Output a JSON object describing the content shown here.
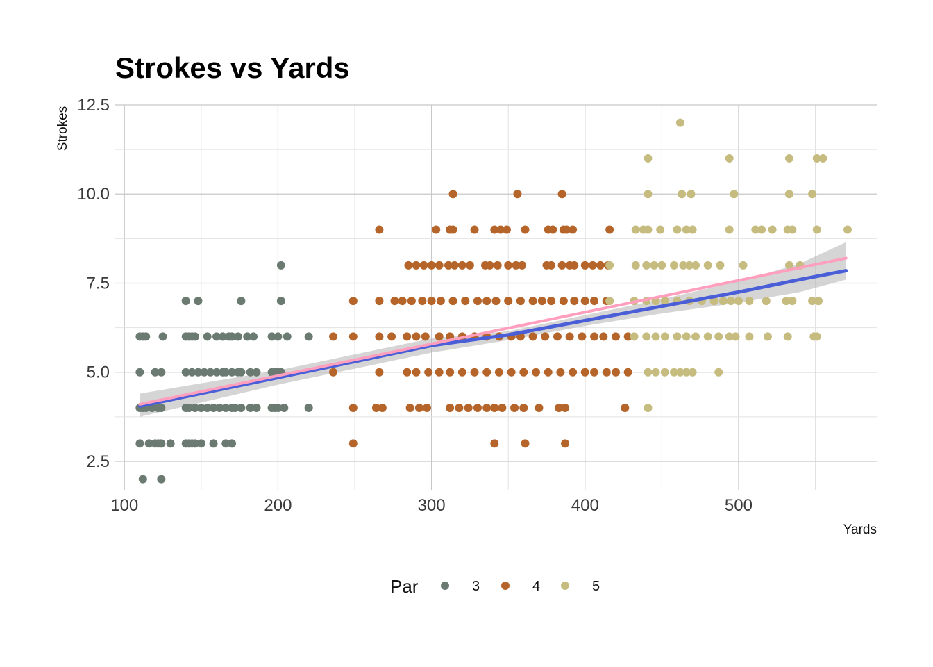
{
  "chart_data": {
    "type": "scatter",
    "title": "Strokes vs Yards",
    "xlabel": "Yards",
    "ylabel": "Strokes",
    "xlim": [
      94,
      590
    ],
    "ylim": [
      1.7,
      12.5
    ],
    "x_ticks": [
      100,
      200,
      300,
      400,
      500
    ],
    "x_tick_labels": [
      "100",
      "200",
      "300",
      "400",
      "500"
    ],
    "y_ticks": [
      2.5,
      5.0,
      7.5,
      10.0,
      12.5
    ],
    "y_tick_labels": [
      "2.5",
      "5.0",
      "7.5",
      "10.0",
      "12.5"
    ],
    "grid": true,
    "legend": {
      "title": "Par",
      "position": "bottom",
      "entries": [
        "3",
        "4",
        "5"
      ]
    },
    "colors": {
      "3": "#6b7b72",
      "4": "#b5652a",
      "5": "#c6bc80",
      "trend_linear": "#ff9fbd",
      "trend_smooth": "#4a5ed8",
      "confidence_band": "#b3b3b3"
    },
    "series": [
      {
        "name": "3",
        "points": [
          [
            110,
            6
          ],
          [
            112,
            6
          ],
          [
            114,
            6
          ],
          [
            110,
            5
          ],
          [
            120,
            5
          ],
          [
            124,
            5
          ],
          [
            110,
            4
          ],
          [
            112,
            4
          ],
          [
            114,
            4
          ],
          [
            118,
            4
          ],
          [
            122,
            4
          ],
          [
            124,
            4
          ],
          [
            110,
            3
          ],
          [
            116,
            3
          ],
          [
            120,
            3
          ],
          [
            122,
            3
          ],
          [
            124,
            3
          ],
          [
            112,
            2
          ],
          [
            124,
            2
          ],
          [
            140,
            7
          ],
          [
            148,
            7
          ],
          [
            176,
            7
          ],
          [
            202,
            7
          ],
          [
            202,
            8
          ],
          [
            125,
            6
          ],
          [
            140,
            6
          ],
          [
            142,
            6
          ],
          [
            144,
            6
          ],
          [
            146,
            6
          ],
          [
            154,
            6
          ],
          [
            160,
            6
          ],
          [
            164,
            6
          ],
          [
            168,
            6
          ],
          [
            170,
            6
          ],
          [
            174,
            6
          ],
          [
            180,
            6
          ],
          [
            184,
            6
          ],
          [
            196,
            6
          ],
          [
            200,
            6
          ],
          [
            206,
            6
          ],
          [
            220,
            6
          ],
          [
            140,
            5
          ],
          [
            144,
            5
          ],
          [
            148,
            5
          ],
          [
            152,
            5
          ],
          [
            156,
            5
          ],
          [
            160,
            5
          ],
          [
            164,
            5
          ],
          [
            166,
            5
          ],
          [
            170,
            5
          ],
          [
            174,
            5
          ],
          [
            176,
            5
          ],
          [
            182,
            5
          ],
          [
            186,
            5
          ],
          [
            196,
            5
          ],
          [
            198,
            5
          ],
          [
            200,
            5
          ],
          [
            202,
            5
          ],
          [
            140,
            4
          ],
          [
            142,
            4
          ],
          [
            146,
            4
          ],
          [
            150,
            4
          ],
          [
            154,
            4
          ],
          [
            158,
            4
          ],
          [
            162,
            4
          ],
          [
            166,
            4
          ],
          [
            170,
            4
          ],
          [
            172,
            4
          ],
          [
            176,
            4
          ],
          [
            182,
            4
          ],
          [
            186,
            4
          ],
          [
            196,
            4
          ],
          [
            198,
            4
          ],
          [
            200,
            4
          ],
          [
            204,
            4
          ],
          [
            220,
            4
          ],
          [
            130,
            3
          ],
          [
            140,
            3
          ],
          [
            142,
            3
          ],
          [
            144,
            3
          ],
          [
            146,
            3
          ],
          [
            150,
            3
          ],
          [
            158,
            3
          ],
          [
            166,
            3
          ],
          [
            170,
            3
          ]
        ]
      },
      {
        "name": "4",
        "points": [
          [
            314,
            10
          ],
          [
            356,
            10
          ],
          [
            385,
            10
          ],
          [
            266,
            9
          ],
          [
            303,
            9
          ],
          [
            312,
            9
          ],
          [
            314,
            9
          ],
          [
            328,
            9
          ],
          [
            341,
            9
          ],
          [
            345,
            9
          ],
          [
            349,
            9
          ],
          [
            361,
            9
          ],
          [
            376,
            9
          ],
          [
            379,
            9
          ],
          [
            386,
            9
          ],
          [
            388,
            9
          ],
          [
            392,
            9
          ],
          [
            416,
            9
          ],
          [
            285,
            8
          ],
          [
            290,
            8
          ],
          [
            295,
            8
          ],
          [
            300,
            8
          ],
          [
            305,
            8
          ],
          [
            311,
            8
          ],
          [
            315,
            8
          ],
          [
            320,
            8
          ],
          [
            325,
            8
          ],
          [
            335,
            8
          ],
          [
            338,
            8
          ],
          [
            343,
            8
          ],
          [
            350,
            8
          ],
          [
            355,
            8
          ],
          [
            359,
            8
          ],
          [
            375,
            8
          ],
          [
            378,
            8
          ],
          [
            385,
            8
          ],
          [
            390,
            8
          ],
          [
            393,
            8
          ],
          [
            400,
            8
          ],
          [
            405,
            8
          ],
          [
            410,
            8
          ],
          [
            415,
            8
          ],
          [
            249,
            7
          ],
          [
            266,
            7
          ],
          [
            276,
            7
          ],
          [
            281,
            7
          ],
          [
            287,
            7
          ],
          [
            294,
            7
          ],
          [
            300,
            7
          ],
          [
            306,
            7
          ],
          [
            314,
            7
          ],
          [
            322,
            7
          ],
          [
            330,
            7
          ],
          [
            336,
            7
          ],
          [
            342,
            7
          ],
          [
            350,
            7
          ],
          [
            358,
            7
          ],
          [
            366,
            7
          ],
          [
            372,
            7
          ],
          [
            378,
            7
          ],
          [
            386,
            7
          ],
          [
            393,
            7
          ],
          [
            400,
            7
          ],
          [
            406,
            7
          ],
          [
            414,
            7
          ],
          [
            236,
            6
          ],
          [
            249,
            6
          ],
          [
            266,
            6
          ],
          [
            274,
            6
          ],
          [
            284,
            6
          ],
          [
            290,
            6
          ],
          [
            296,
            6
          ],
          [
            305,
            6
          ],
          [
            312,
            6
          ],
          [
            320,
            6
          ],
          [
            328,
            6
          ],
          [
            336,
            6
          ],
          [
            344,
            6
          ],
          [
            352,
            6
          ],
          [
            358,
            6
          ],
          [
            366,
            6
          ],
          [
            374,
            6
          ],
          [
            382,
            6
          ],
          [
            390,
            6
          ],
          [
            398,
            6
          ],
          [
            406,
            6
          ],
          [
            412,
            6
          ],
          [
            420,
            6
          ],
          [
            428,
            6
          ],
          [
            236,
            5
          ],
          [
            266,
            5
          ],
          [
            284,
            5
          ],
          [
            290,
            5
          ],
          [
            298,
            5
          ],
          [
            305,
            5
          ],
          [
            312,
            5
          ],
          [
            320,
            5
          ],
          [
            328,
            5
          ],
          [
            336,
            5
          ],
          [
            344,
            5
          ],
          [
            352,
            5
          ],
          [
            360,
            5
          ],
          [
            368,
            5
          ],
          [
            376,
            5
          ],
          [
            384,
            5
          ],
          [
            392,
            5
          ],
          [
            400,
            5
          ],
          [
            406,
            5
          ],
          [
            414,
            5
          ],
          [
            420,
            5
          ],
          [
            428,
            5
          ],
          [
            249,
            4
          ],
          [
            264,
            4
          ],
          [
            268,
            4
          ],
          [
            286,
            4
          ],
          [
            292,
            4
          ],
          [
            297,
            4
          ],
          [
            312,
            4
          ],
          [
            318,
            4
          ],
          [
            324,
            4
          ],
          [
            330,
            4
          ],
          [
            336,
            4
          ],
          [
            341,
            4
          ],
          [
            346,
            4
          ],
          [
            354,
            4
          ],
          [
            360,
            4
          ],
          [
            370,
            4
          ],
          [
            383,
            4
          ],
          [
            387,
            4
          ],
          [
            426,
            4
          ],
          [
            249,
            3
          ],
          [
            341,
            3
          ],
          [
            361,
            3
          ],
          [
            387,
            3
          ]
        ]
      },
      {
        "name": "5",
        "points": [
          [
            462,
            12
          ],
          [
            441,
            11
          ],
          [
            494,
            11
          ],
          [
            533,
            11
          ],
          [
            551,
            11
          ],
          [
            555,
            11
          ],
          [
            441,
            10
          ],
          [
            463,
            10
          ],
          [
            469,
            10
          ],
          [
            497,
            10
          ],
          [
            533,
            10
          ],
          [
            548,
            10
          ],
          [
            433,
            9
          ],
          [
            438,
            9
          ],
          [
            441,
            9
          ],
          [
            449,
            9
          ],
          [
            460,
            9
          ],
          [
            466,
            9
          ],
          [
            470,
            9
          ],
          [
            494,
            9
          ],
          [
            511,
            9
          ],
          [
            515,
            9
          ],
          [
            522,
            9
          ],
          [
            532,
            9
          ],
          [
            535,
            9
          ],
          [
            551,
            9
          ],
          [
            571,
            9
          ],
          [
            416,
            8
          ],
          [
            433,
            8
          ],
          [
            440,
            8
          ],
          [
            445,
            8
          ],
          [
            450,
            8
          ],
          [
            458,
            8
          ],
          [
            464,
            8
          ],
          [
            468,
            8
          ],
          [
            472,
            8
          ],
          [
            480,
            8
          ],
          [
            488,
            8
          ],
          [
            503,
            8
          ],
          [
            533,
            8
          ],
          [
            540,
            8
          ],
          [
            416,
            7
          ],
          [
            432,
            7
          ],
          [
            440,
            7
          ],
          [
            446,
            7
          ],
          [
            452,
            7
          ],
          [
            460,
            7
          ],
          [
            468,
            7
          ],
          [
            476,
            7
          ],
          [
            484,
            7
          ],
          [
            490,
            7
          ],
          [
            495,
            7
          ],
          [
            500,
            7
          ],
          [
            507,
            7
          ],
          [
            518,
            7
          ],
          [
            531,
            7
          ],
          [
            535,
            7
          ],
          [
            548,
            7
          ],
          [
            552,
            7
          ],
          [
            432,
            6
          ],
          [
            440,
            6
          ],
          [
            446,
            6
          ],
          [
            452,
            6
          ],
          [
            460,
            6
          ],
          [
            466,
            6
          ],
          [
            472,
            6
          ],
          [
            480,
            6
          ],
          [
            487,
            6
          ],
          [
            494,
            6
          ],
          [
            498,
            6
          ],
          [
            507,
            6
          ],
          [
            519,
            6
          ],
          [
            532,
            6
          ],
          [
            549,
            6
          ],
          [
            551,
            6
          ],
          [
            441,
            5
          ],
          [
            446,
            5
          ],
          [
            452,
            5
          ],
          [
            458,
            5
          ],
          [
            462,
            5
          ],
          [
            466,
            5
          ],
          [
            470,
            5
          ],
          [
            487,
            5
          ],
          [
            441,
            4
          ]
        ]
      }
    ],
    "trend_linear": [
      [
        110,
        4.1
      ],
      [
        570,
        8.2
      ]
    ],
    "trend_smooth": [
      [
        110,
        4.05
      ],
      [
        200,
        4.85
      ],
      [
        300,
        5.75
      ],
      [
        350,
        6.05
      ],
      [
        400,
        6.45
      ],
      [
        450,
        6.85
      ],
      [
        500,
        7.25
      ],
      [
        540,
        7.6
      ],
      [
        570,
        7.85
      ]
    ],
    "confidence_band": {
      "upper": [
        [
          110,
          4.4
        ],
        [
          200,
          5.05
        ],
        [
          300,
          5.95
        ],
        [
          350,
          6.15
        ],
        [
          400,
          6.6
        ],
        [
          450,
          7.05
        ],
        [
          500,
          7.55
        ],
        [
          540,
          8.05
        ],
        [
          570,
          8.65
        ]
      ],
      "lower": [
        [
          110,
          3.75
        ],
        [
          200,
          4.65
        ],
        [
          300,
          5.55
        ],
        [
          350,
          5.9
        ],
        [
          400,
          6.3
        ],
        [
          450,
          6.65
        ],
        [
          500,
          6.95
        ],
        [
          540,
          7.25
        ],
        [
          570,
          7.6
        ]
      ]
    }
  }
}
